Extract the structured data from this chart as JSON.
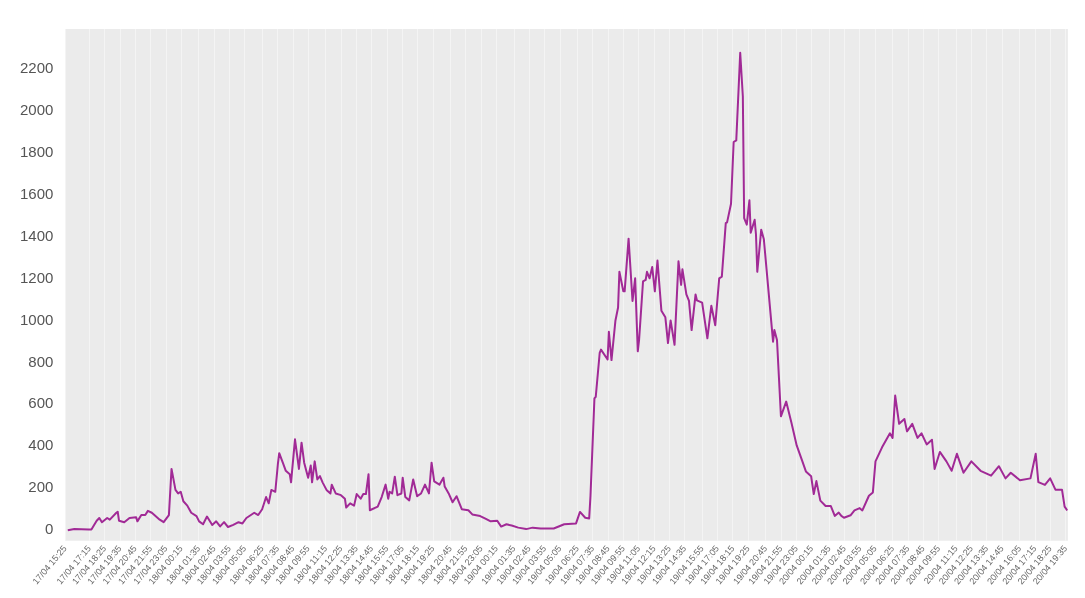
{
  "chart_data": {
    "type": "line",
    "x": [
      "--04-17T15:36",
      "--04-17T16:06",
      "--04-17T17:12",
      "--04-17T17:24",
      "--04-17T17:48",
      "--04-17T18:00",
      "--04-17T18:12",
      "--04-17T18:36",
      "--04-17T18:48",
      "--04-17T19:18",
      "--04-17T19:24",
      "--04-17T19:30",
      "--04-17T19:54",
      "--04-17T20:18",
      "--04-17T20:48",
      "--04-17T20:54",
      "--04-17T21:12",
      "--04-17T21:30",
      "--04-17T21:42",
      "--04-17T22:00",
      "--04-17T22:36",
      "--04-17T22:54",
      "--04-17T23:18",
      "--04-17T23:30",
      "--04-17T23:48",
      "--04-18T00:00",
      "--04-18T00:12",
      "--04-18T00:24",
      "--04-18T00:42",
      "--04-18T01:00",
      "--04-18T01:24",
      "--04-18T01:36",
      "--04-18T01:54",
      "--04-18T02:12",
      "--04-18T02:36",
      "--04-18T02:54",
      "--04-18T03:12",
      "--04-18T03:30",
      "--04-18T03:48",
      "--04-18T04:12",
      "--04-18T04:36",
      "--04-18T04:54",
      "--04-18T05:12",
      "--04-18T05:48",
      "--04-18T06:06",
      "--04-18T06:24",
      "--04-18T06:42",
      "--04-18T06:54",
      "--04-18T07:06",
      "--04-18T07:24",
      "--04-18T07:36",
      "--04-18T07:42",
      "--04-18T08:00",
      "--04-18T08:12",
      "--04-18T08:30",
      "--04-18T08:36",
      "--04-18T08:54",
      "--04-18T09:12",
      "--04-18T09:24",
      "--04-18T09:36",
      "--04-18T09:54",
      "--04-18T10:06",
      "--04-18T10:12",
      "--04-18T10:24",
      "--04-18T10:36",
      "--04-18T10:48",
      "--04-18T11:00",
      "--04-18T11:18",
      "--04-18T11:36",
      "--04-18T11:42",
      "--04-18T12:00",
      "--04-18T12:24",
      "--04-18T12:42",
      "--04-18T12:48",
      "--04-18T13:06",
      "--04-18T13:24",
      "--04-18T13:36",
      "--04-18T13:54",
      "--04-18T14:06",
      "--04-18T14:18",
      "--04-18T14:30",
      "--04-18T14:36",
      "--04-18T15:12",
      "--04-18T15:30",
      "--04-18T15:48",
      "--04-18T16:00",
      "--04-18T16:06",
      "--04-18T16:18",
      "--04-18T16:30",
      "--04-18T16:42",
      "--04-18T17:00",
      "--04-18T17:06",
      "--04-18T17:18",
      "--04-18T17:36",
      "--04-18T17:54",
      "--04-18T18:12",
      "--04-18T18:30",
      "--04-18T18:48",
      "--04-18T19:06",
      "--04-18T19:18",
      "--04-18T19:30",
      "--04-18T19:54",
      "--04-18T20:12",
      "--04-18T20:18",
      "--04-18T20:36",
      "--04-18T20:54",
      "--04-18T21:12",
      "--04-18T21:36",
      "--04-18T22:06",
      "--04-18T22:24",
      "--04-18T23:00",
      "--04-18T23:24",
      "--04-18T23:48",
      "--04-19T00:18",
      "--04-19T00:36",
      "--04-19T01:00",
      "--04-19T01:24",
      "--04-19T01:54",
      "--04-19T02:30",
      "--04-19T03:00",
      "--04-19T03:36",
      "--04-19T04:36",
      "--04-19T05:24",
      "--04-19T06:18",
      "--04-19T06:36",
      "--04-19T07:00",
      "--04-19T07:18",
      "--04-19T07:24",
      "--04-19T07:42",
      "--04-19T07:48",
      "--04-19T08:06",
      "--04-19T08:12",
      "--04-19T08:42",
      "--04-19T08:48",
      "--04-19T09:00",
      "--04-19T09:18",
      "--04-19T09:30",
      "--04-19T09:36",
      "--04-19T09:54",
      "--04-19T10:00",
      "--04-19T10:18",
      "--04-19T10:36",
      "--04-19T10:48",
      "--04-19T11:00",
      "--04-19T11:06",
      "--04-19T11:24",
      "--04-19T11:36",
      "--04-19T11:42",
      "--04-19T11:54",
      "--04-19T12:06",
      "--04-19T12:18",
      "--04-19T12:30",
      "--04-19T12:48",
      "--04-19T13:06",
      "--04-19T13:18",
      "--04-19T13:30",
      "--04-19T13:48",
      "--04-19T14:06",
      "--04-19T14:18",
      "--04-19T14:24",
      "--04-19T14:42",
      "--04-19T14:54",
      "--04-19T15:06",
      "--04-19T15:24",
      "--04-19T15:30",
      "--04-19T15:54",
      "--04-19T16:18",
      "--04-19T16:36",
      "--04-19T16:54",
      "--04-19T17:12",
      "--04-19T17:24",
      "--04-19T17:42",
      "--04-19T17:48",
      "--04-19T18:06",
      "--04-19T18:18",
      "--04-19T18:30",
      "--04-19T18:48",
      "--04-19T19:00",
      "--04-19T19:06",
      "--04-19T19:18",
      "--04-19T19:30",
      "--04-19T19:36",
      "--04-19T19:54",
      "--04-19T20:00",
      "--04-19T20:06",
      "--04-19T20:24",
      "--04-19T20:36",
      "--04-19T21:18",
      "--04-19T21:24",
      "--04-19T21:36",
      "--04-19T21:54",
      "--04-19T22:18",
      "--04-19T22:42",
      "--04-19T23:06",
      "--04-19T23:30",
      "--04-19T23:48",
      "--04-20T00:12",
      "--04-20T00:24",
      "--04-20T00:36",
      "--04-20T00:54",
      "--04-20T01:18",
      "--04-20T01:42",
      "--04-20T02:00",
      "--04-20T02:18",
      "--04-20T02:30",
      "--04-20T02:42",
      "--04-20T03:12",
      "--04-20T03:30",
      "--04-20T03:54",
      "--04-20T04:06",
      "--04-20T04:36",
      "--04-20T04:54",
      "--04-20T05:06",
      "--04-20T05:36",
      "--04-20T06:12",
      "--04-20T06:24",
      "--04-20T06:36",
      "--04-20T06:54",
      "--04-20T07:18",
      "--04-20T07:30",
      "--04-20T07:54",
      "--04-20T08:18",
      "--04-20T08:36",
      "--04-20T09:00",
      "--04-20T09:24",
      "--04-20T09:36",
      "--04-20T10:00",
      "--04-20T10:30",
      "--04-20T10:54",
      "--04-20T11:18",
      "--04-20T11:48",
      "--04-20T12:24",
      "--04-20T13:06",
      "--04-20T13:54",
      "--04-20T14:30",
      "--04-20T15:00",
      "--04-20T15:24",
      "--04-20T16:06",
      "--04-20T16:54",
      "--04-20T17:18",
      "--04-20T17:30",
      "--04-20T18:00",
      "--04-20T18:24",
      "--04-20T18:48",
      "--04-20T19:18",
      "--04-20T19:30",
      "--04-20T19:42"
    ],
    "series": [
      {
        "color": "#a12a96",
        "values": [
          0,
          5,
          3,
          3,
          45,
          58,
          38,
          58,
          50,
          83,
          88,
          45,
          38,
          58,
          62,
          42,
          72,
          72,
          92,
          83,
          50,
          38,
          72,
          292,
          192,
          175,
          183,
          138,
          117,
          83,
          67,
          42,
          28,
          65,
          25,
          42,
          18,
          38,
          15,
          25,
          38,
          32,
          58,
          83,
          72,
          100,
          158,
          128,
          192,
          183,
          317,
          367,
          317,
          283,
          267,
          228,
          433,
          292,
          417,
          322,
          250,
          308,
          228,
          328,
          242,
          258,
          228,
          192,
          175,
          217,
          175,
          167,
          150,
          108,
          128,
          117,
          172,
          150,
          172,
          172,
          267,
          95,
          112,
          158,
          217,
          150,
          183,
          175,
          255,
          167,
          175,
          250,
          158,
          142,
          242,
          162,
          175,
          217,
          175,
          322,
          233,
          217,
          250,
          208,
          175,
          133,
          162,
          100,
          95,
          75,
          67,
          55,
          42,
          45,
          17,
          28,
          22,
          12,
          5,
          12,
          8,
          8,
          28,
          32,
          87,
          59,
          56,
          164,
          628,
          636,
          845,
          861,
          814,
          946,
          811,
          1000,
          1062,
          1232,
          1139,
          1139,
          1390,
          1093,
          1201,
          853,
          907,
          1186,
          1193,
          1232,
          1201,
          1255,
          1139,
          1286,
          1046,
          1015,
          892,
          1000,
          884,
          1282,
          1170,
          1244,
          1124,
          1093,
          954,
          1124,
          1096,
          1085,
          915,
          1070,
          977,
          1201,
          1209,
          1464,
          1468,
          1557,
          1851,
          1859,
          2277,
          2068,
          1488,
          1457,
          1573,
          1418,
          1480,
          1410,
          1232,
          1433,
          1387,
          899,
          954,
          907,
          543,
          613,
          512,
          404,
          334,
          280,
          257,
          172,
          234,
          141,
          115,
          115,
          68,
          84,
          68,
          59,
          71,
          94,
          105,
          94,
          164,
          180,
          328,
          395,
          462,
          440,
          642,
          507,
          530,
          471,
          507,
          440,
          462,
          409,
          431,
          292,
          373,
          328,
          283,
          364,
          274,
          328,
          283,
          260,
          305,
          247,
          274,
          238,
          247,
          364,
          229,
          216,
          247,
          193,
          193,
          112,
          94
        ]
      }
    ],
    "xlim": [
      "--04-17T15:25",
      "--04-20T19:45"
    ],
    "xticks": [
      {
        "value": "--04-17T15:25",
        "label": "17/04 15:25"
      },
      {
        "value": "--04-17T17:15",
        "label": "17/04 17:15"
      },
      {
        "value": "--04-17T18:25",
        "label": "17/04 18:25"
      },
      {
        "value": "--04-17T19:35",
        "label": "17/04 19:35"
      },
      {
        "value": "--04-17T20:45",
        "label": "17/04 20:45"
      },
      {
        "value": "--04-17T21:55",
        "label": "17/04 21:55"
      },
      {
        "value": "--04-17T23:05",
        "label": "17/04 23:05"
      },
      {
        "value": "--04-18T00:15",
        "label": "18/04 00:15"
      },
      {
        "value": "--04-18T01:35",
        "label": "18/04 01:35"
      },
      {
        "value": "--04-18T02:45",
        "label": "18/04 02:45"
      },
      {
        "value": "--04-18T03:55",
        "label": "18/04 03:55"
      },
      {
        "value": "--04-18T05:05",
        "label": "18/04 05:05"
      },
      {
        "value": "--04-18T06:25",
        "label": "18/04 06:25"
      },
      {
        "value": "--04-18T07:35",
        "label": "18/04 07:35"
      },
      {
        "value": "--04-18T08:45",
        "label": "18/04 08:45"
      },
      {
        "value": "--04-18T09:55",
        "label": "18/04 09:55"
      },
      {
        "value": "--04-18T11:15",
        "label": "18/04 11:15"
      },
      {
        "value": "--04-18T12:25",
        "label": "18/04 12:25"
      },
      {
        "value": "--04-18T13:35",
        "label": "18/04 13:35"
      },
      {
        "value": "--04-18T14:45",
        "label": "18/04 14:45"
      },
      {
        "value": "--04-18T15:55",
        "label": "18/04 15:55"
      },
      {
        "value": "--04-18T17:05",
        "label": "18/04 17:05"
      },
      {
        "value": "--04-18T18:15",
        "label": "18/04 18:15"
      },
      {
        "value": "--04-18T19:25",
        "label": "18/04 19:25"
      },
      {
        "value": "--04-18T20:45",
        "label": "18/04 20:45"
      },
      {
        "value": "--04-18T21:55",
        "label": "18/04 21:55"
      },
      {
        "value": "--04-18T23:05",
        "label": "18/04 23:05"
      },
      {
        "value": "--04-19T00:15",
        "label": "19/04 00:15"
      },
      {
        "value": "--04-19T01:35",
        "label": "19/04 01:35"
      },
      {
        "value": "--04-19T02:45",
        "label": "19/04 02:45"
      },
      {
        "value": "--04-19T03:55",
        "label": "19/04 03:55"
      },
      {
        "value": "--04-19T05:05",
        "label": "19/04 05:05"
      },
      {
        "value": "--04-19T06:25",
        "label": "19/04 06:25"
      },
      {
        "value": "--04-19T07:35",
        "label": "19/04 07:35"
      },
      {
        "value": "--04-19T08:45",
        "label": "19/04 08:45"
      },
      {
        "value": "--04-19T09:55",
        "label": "19/04 09:55"
      },
      {
        "value": "--04-19T11:05",
        "label": "19/04 11:05"
      },
      {
        "value": "--04-19T12:15",
        "label": "19/04 12:15"
      },
      {
        "value": "--04-19T13:25",
        "label": "19/04 13:25"
      },
      {
        "value": "--04-19T14:35",
        "label": "19/04 14:35"
      },
      {
        "value": "--04-19T15:55",
        "label": "19/04 15:55"
      },
      {
        "value": "--04-19T17:05",
        "label": "19/04 17:05"
      },
      {
        "value": "--04-19T18:15",
        "label": "19/04 18:15"
      },
      {
        "value": "--04-19T19:25",
        "label": "19/04 19:25"
      },
      {
        "value": "--04-19T20:45",
        "label": "19/04 20:45"
      },
      {
        "value": "--04-19T21:55",
        "label": "19/04 21:55"
      },
      {
        "value": "--04-19T23:05",
        "label": "19/04 23:05"
      },
      {
        "value": "--04-20T00:15",
        "label": "20/04 00:15"
      },
      {
        "value": "--04-20T01:35",
        "label": "20/04 01:35"
      },
      {
        "value": "--04-20T02:45",
        "label": "20/04 02:45"
      },
      {
        "value": "--04-20T03:55",
        "label": "20/04 03:55"
      },
      {
        "value": "--04-20T05:05",
        "label": "20/04 05:05"
      },
      {
        "value": "--04-20T06:25",
        "label": "20/04 06:25"
      },
      {
        "value": "--04-20T07:35",
        "label": "20/04 07:35"
      },
      {
        "value": "--04-20T08:45",
        "label": "20/04 08:45"
      },
      {
        "value": "--04-20T09:55",
        "label": "20/04 09:55"
      },
      {
        "value": "--04-20T11:15",
        "label": "20/04 11:15"
      },
      {
        "value": "--04-20T12:25",
        "label": "20/04 12:25"
      },
      {
        "value": "--04-20T13:35",
        "label": "20/04 13:35"
      },
      {
        "value": "--04-20T14:45",
        "label": "20/04 14:45"
      },
      {
        "value": "--04-20T16:05",
        "label": "20/04 16:05"
      },
      {
        "value": "--04-20T17:15",
        "label": "20/04 17:15"
      },
      {
        "value": "--04-20T18:25",
        "label": "20/04 18:25"
      },
      {
        "value": "--04-20T19:35",
        "label": "20/04 19:35"
      }
    ],
    "ylim": [
      -50,
      2390
    ],
    "yticks": [
      0,
      200,
      400,
      600,
      800,
      1000,
      1200,
      1400,
      1600,
      1800,
      2000,
      2200
    ],
    "grid": "x",
    "legend": false,
    "marker": "none",
    "line_style": "solid"
  }
}
